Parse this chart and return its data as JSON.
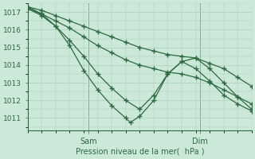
{
  "title": "",
  "xlabel": "Pression niveau de la mer(  hPa )",
  "ylim": [
    1010.3,
    1017.5
  ],
  "xlim": [
    0,
    48
  ],
  "yticks": [
    1011,
    1012,
    1013,
    1014,
    1015,
    1016,
    1017
  ],
  "xtick_positions": [
    13,
    37
  ],
  "xtick_labels": [
    "Sam",
    "Dim"
  ],
  "bg_color": "#cce8d8",
  "grid_color": "#aacfbc",
  "line_color": "#2d6a3f",
  "figsize": [
    3.2,
    2.0
  ],
  "dpi": 100,
  "lines": [
    {
      "x": [
        0,
        3,
        6,
        9,
        12,
        15,
        18,
        21,
        24,
        27,
        30,
        33,
        36,
        39,
        42,
        45,
        48
      ],
      "y": [
        1017.3,
        1017.1,
        1016.8,
        1016.5,
        1016.2,
        1015.9,
        1015.6,
        1015.3,
        1015.0,
        1014.8,
        1014.6,
        1014.5,
        1014.4,
        1014.1,
        1013.8,
        1013.3,
        1012.8
      ]
    },
    {
      "x": [
        0,
        3,
        6,
        9,
        12,
        15,
        18,
        21,
        24,
        27,
        30,
        33,
        36,
        39,
        42,
        45,
        48
      ],
      "y": [
        1017.2,
        1016.9,
        1016.5,
        1016.1,
        1015.6,
        1015.1,
        1014.7,
        1014.3,
        1014.0,
        1013.8,
        1013.6,
        1013.5,
        1013.3,
        1013.0,
        1012.6,
        1012.2,
        1011.8
      ]
    },
    {
      "x": [
        0,
        3,
        6,
        9,
        12,
        15,
        18,
        21,
        24,
        27,
        30,
        33,
        36,
        39,
        42,
        45,
        48
      ],
      "y": [
        1017.2,
        1016.8,
        1016.2,
        1015.4,
        1014.5,
        1013.5,
        1012.7,
        1012.0,
        1011.5,
        1012.3,
        1013.5,
        1014.2,
        1014.4,
        1013.8,
        1013.0,
        1012.2,
        1011.5
      ]
    },
    {
      "x": [
        0,
        3,
        6,
        9,
        12,
        15,
        18,
        21,
        22,
        24,
        27,
        30,
        33,
        36,
        39,
        42,
        45,
        48
      ],
      "y": [
        1017.3,
        1016.9,
        1016.2,
        1015.1,
        1013.7,
        1012.6,
        1011.7,
        1011.0,
        1010.75,
        1011.1,
        1012.0,
        1013.5,
        1014.2,
        1013.8,
        1013.1,
        1012.3,
        1011.8,
        1011.4
      ]
    }
  ]
}
